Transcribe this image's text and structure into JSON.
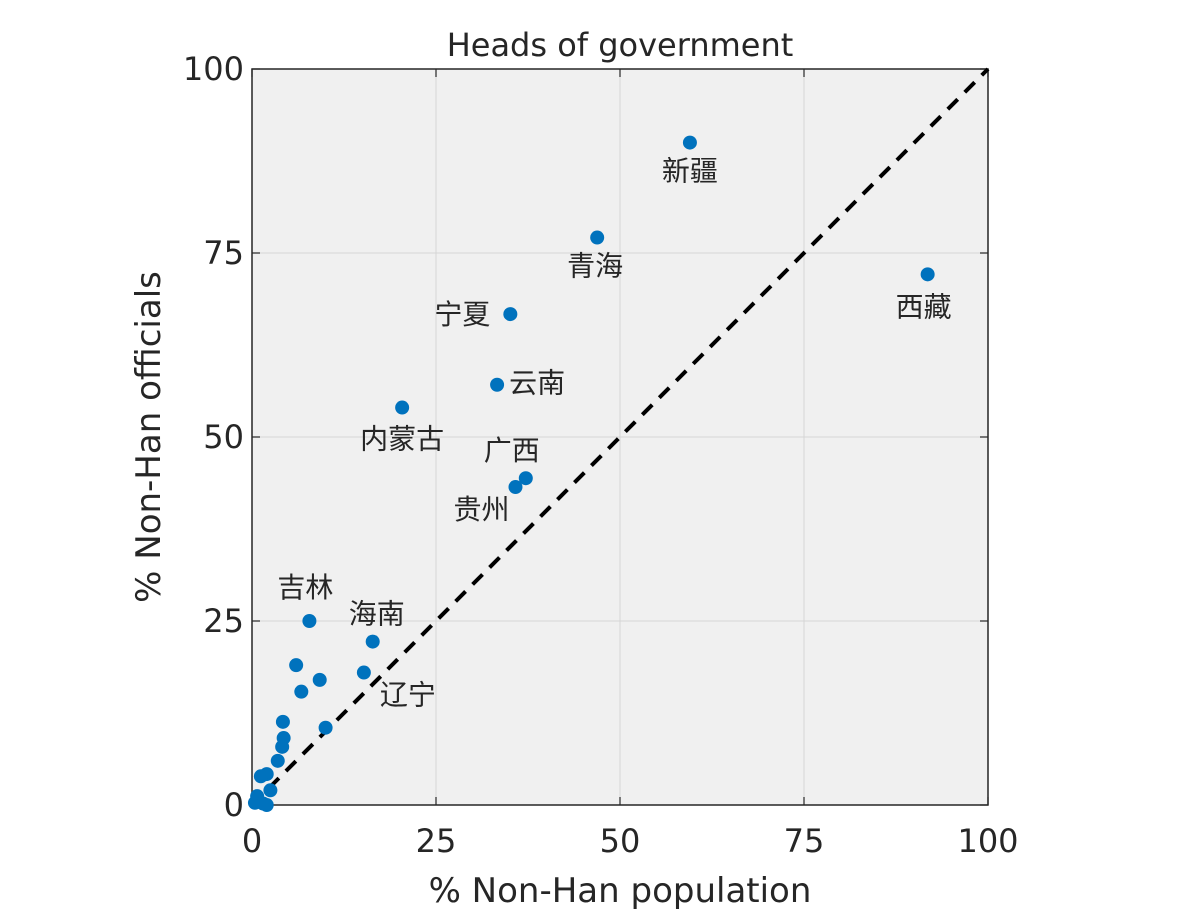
{
  "chart_data": {
    "type": "scatter",
    "title": "Heads of government",
    "xlabel": "% Non-Han population",
    "ylabel": "% Non-Han officials",
    "xlim": [
      0,
      100
    ],
    "ylim": [
      0,
      100
    ],
    "xticks": [
      "0",
      "25",
      "50",
      "75",
      "100"
    ],
    "yticks": [
      "0",
      "25",
      "50",
      "75",
      "100"
    ],
    "grid": true,
    "reference_line": "y = x (dashed)",
    "marker_color": "#0072BD",
    "axes_background": "#f0f0f0",
    "points": [
      {
        "x": 59.5,
        "y": 90.0,
        "label": "新疆"
      },
      {
        "x": 46.9,
        "y": 77.1,
        "label": "青海"
      },
      {
        "x": 91.8,
        "y": 72.1,
        "label": "西藏"
      },
      {
        "x": 35.1,
        "y": 66.7,
        "label": "宁夏"
      },
      {
        "x": 33.3,
        "y": 57.1,
        "label": "云南"
      },
      {
        "x": 20.4,
        "y": 54.0,
        "label": "内蒙古"
      },
      {
        "x": 37.2,
        "y": 44.4,
        "label": "广西"
      },
      {
        "x": 35.8,
        "y": 43.2,
        "label": "贵州"
      },
      {
        "x": 7.8,
        "y": 25.0,
        "label": "吉林"
      },
      {
        "x": 16.4,
        "y": 22.2,
        "label": "海南"
      },
      {
        "x": 15.2,
        "y": 18.0,
        "label": "辽宁"
      },
      {
        "x": 6.0,
        "y": 19.0,
        "label": ""
      },
      {
        "x": 6.7,
        "y": 15.4,
        "label": ""
      },
      {
        "x": 9.2,
        "y": 17.0,
        "label": ""
      },
      {
        "x": 10.0,
        "y": 10.5,
        "label": ""
      },
      {
        "x": 4.2,
        "y": 11.3,
        "label": ""
      },
      {
        "x": 4.3,
        "y": 9.1,
        "label": ""
      },
      {
        "x": 4.1,
        "y": 7.9,
        "label": ""
      },
      {
        "x": 3.5,
        "y": 6.0,
        "label": ""
      },
      {
        "x": 2.0,
        "y": 4.2,
        "label": ""
      },
      {
        "x": 1.2,
        "y": 3.9,
        "label": ""
      },
      {
        "x": 2.5,
        "y": 2.0,
        "label": ""
      },
      {
        "x": 0.7,
        "y": 1.2,
        "label": ""
      },
      {
        "x": 0.4,
        "y": 0.3,
        "label": ""
      },
      {
        "x": 1.5,
        "y": 0.2,
        "label": ""
      },
      {
        "x": 2.0,
        "y": 0.0,
        "label": ""
      }
    ]
  }
}
